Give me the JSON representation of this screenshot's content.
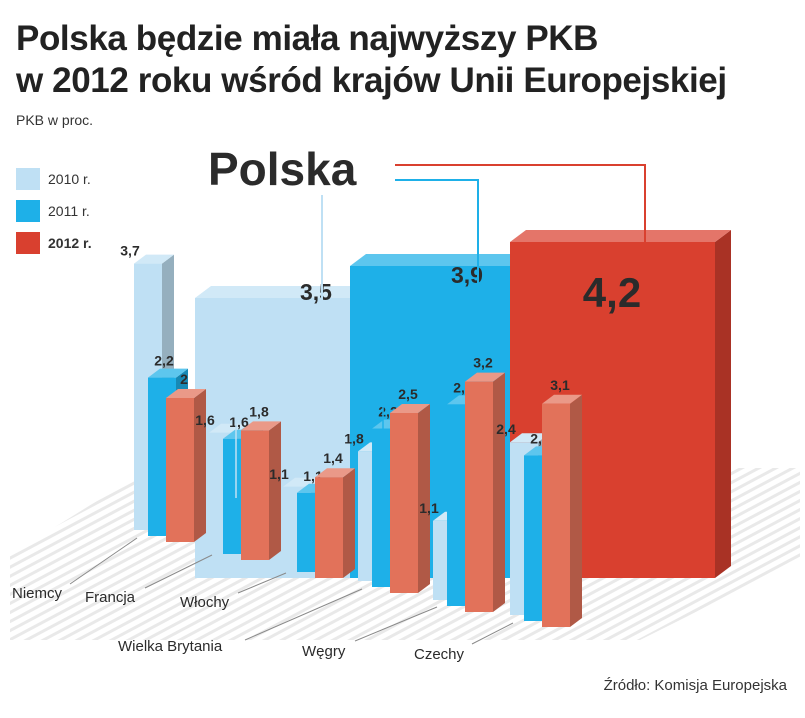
{
  "title_line1": "Polska będzie miała najwyższy PKB",
  "title_line2": "w 2012 roku wśród krajów Unii Europejskiej",
  "subtitle": "PKB w proc.",
  "source": "Źródło: Komisja Europejska",
  "colors": {
    "y2010": "#bfe0f4",
    "y2011": "#1eb0e8",
    "y2012": "#d9402f",
    "bar2012_small": "#e2725a"
  },
  "chart_data": {
    "type": "bar",
    "title": "Polska będzie miała najwyższy PKB w 2012 roku wśród krajów Unii Europejskiej",
    "ylabel": "PKB w proc.",
    "legend_position": "top-left",
    "highlight": {
      "label": "Polska",
      "values": [
        {
          "series": "2010 r.",
          "value": 3.5,
          "label": "3,5"
        },
        {
          "series": "2011 r.",
          "value": 3.9,
          "label": "3,9"
        },
        {
          "series": "2012 r.",
          "value": 4.2,
          "label": "4,2"
        }
      ]
    },
    "categories": [
      "Niemcy",
      "Francja",
      "Włochy",
      "Wielka Brytania",
      "Węgry",
      "Czechy"
    ],
    "series": [
      {
        "name": "2010 r.",
        "values": [
          3.7,
          1.6,
          1.1,
          1.8,
          1.1,
          2.4
        ],
        "labels": [
          "3,7",
          "1,6",
          "1,1",
          "1,8",
          "1,1",
          "2,4"
        ]
      },
      {
        "name": "2011 r.",
        "values": [
          2.2,
          1.6,
          1.1,
          2.2,
          2.8,
          2.3
        ],
        "labels": [
          "2,2",
          "1,6",
          "1,1",
          "2,2",
          "2,8",
          "2,3"
        ]
      },
      {
        "name": "2012 r.",
        "values": [
          2.0,
          1.8,
          1.4,
          2.5,
          3.2,
          3.1
        ],
        "labels": [
          "2",
          "1,8",
          "1,4",
          "2,5",
          "3,2",
          "3,1"
        ]
      }
    ]
  }
}
